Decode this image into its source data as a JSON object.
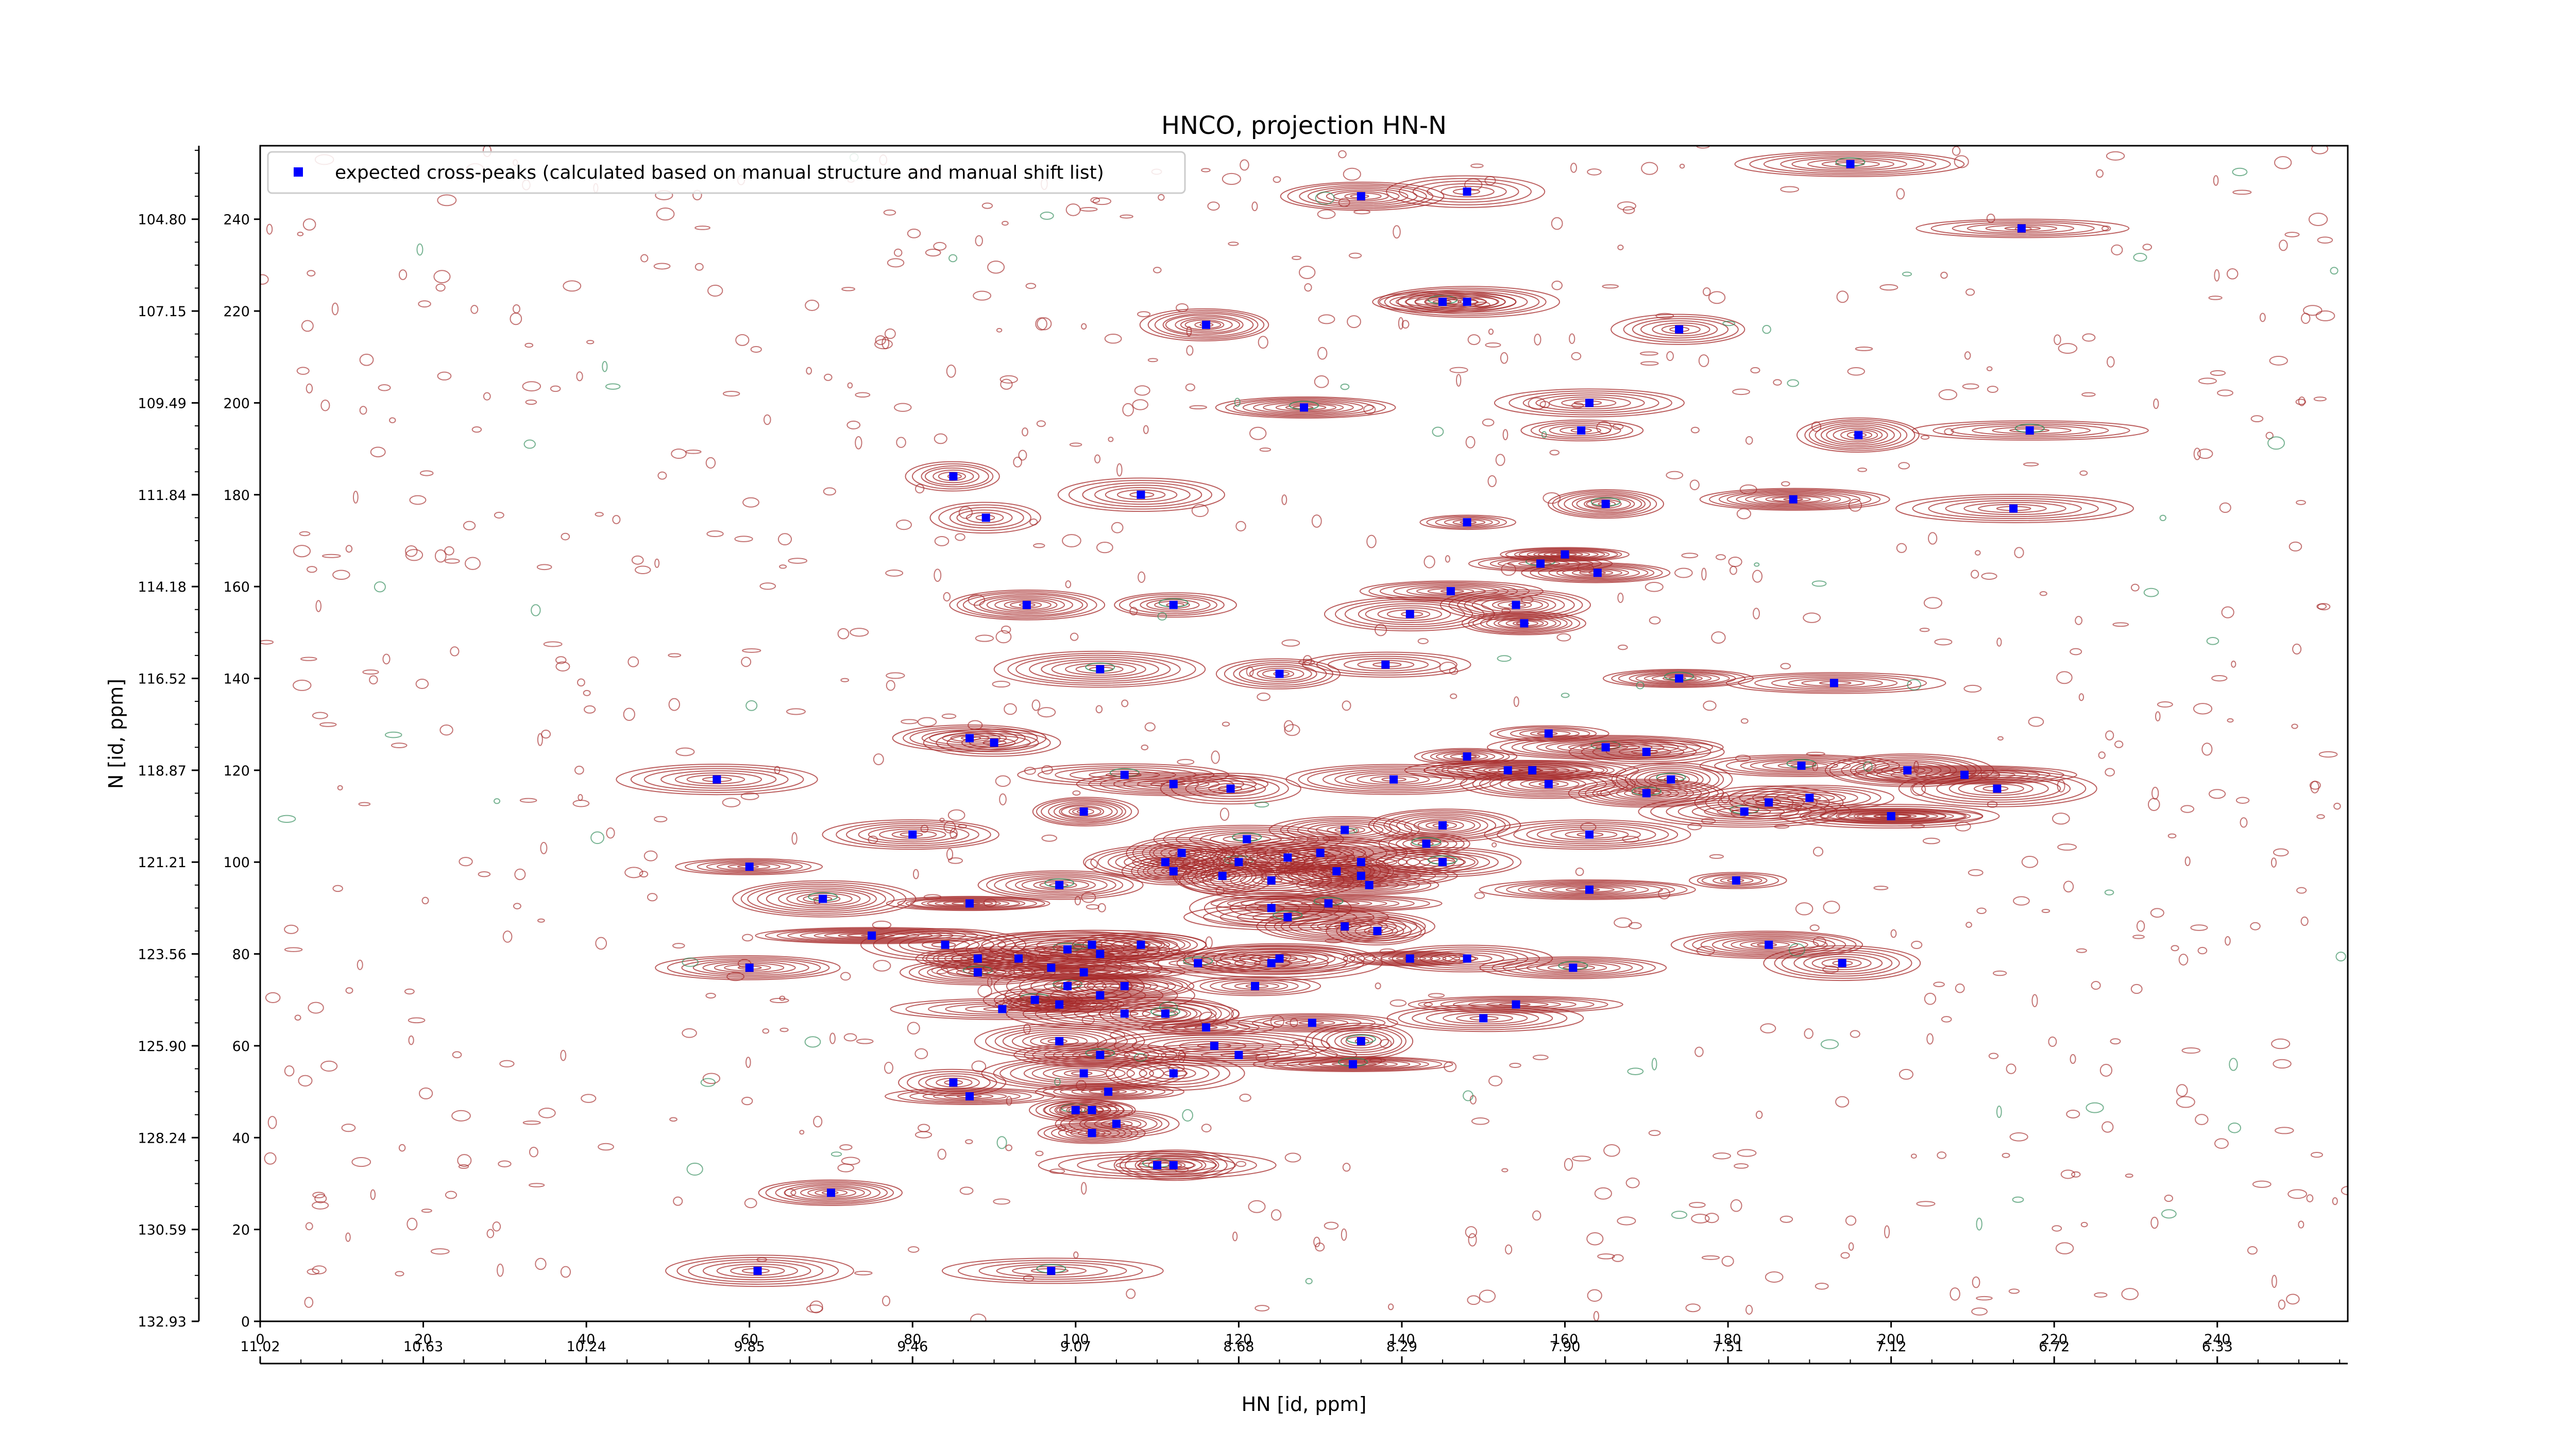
{
  "chart_data": {
    "type": "scatter",
    "title": "HNCO, projection HN-N",
    "xlabel": "HN [id, ppm]",
    "ylabel": "N [id, ppm]",
    "x_index_range": [
      0,
      256
    ],
    "y_index_range": [
      0,
      256
    ],
    "x_index_ticks": [
      "0",
      "20",
      "40",
      "60",
      "80",
      "100",
      "120",
      "140",
      "160",
      "180",
      "200",
      "220",
      "240"
    ],
    "x_ppm_ticks": [
      "11.02",
      "10.63",
      "10.24",
      "9.85",
      "9.46",
      "9.07",
      "8.68",
      "8.29",
      "7.90",
      "7.51",
      "7.12",
      "6.72",
      "6.33"
    ],
    "y_index_ticks": [
      "0",
      "20",
      "40",
      "60",
      "80",
      "100",
      "120",
      "140",
      "160",
      "180",
      "200",
      "220",
      "240"
    ],
    "y_ppm_ticks": [
      "132.93",
      "130.59",
      "128.24",
      "125.90",
      "123.56",
      "121.21",
      "118.87",
      "116.52",
      "114.18",
      "111.84",
      "109.49",
      "107.15",
      "104.80"
    ],
    "legend": {
      "placement": "top-left",
      "entries": [
        "expected cross-peaks (calculated based on manual structure and manual shift list)"
      ]
    },
    "colors": {
      "positive_contours": "#a52a2a",
      "negative_contours": "#2e8b57",
      "markers": "#0000ff"
    },
    "series": [
      {
        "name": "expected cross-peaks (calculated based on manual structure and manual shift list)",
        "points": [
          [
            195,
            252
          ],
          [
            148,
            246
          ],
          [
            135,
            245
          ],
          [
            216,
            238
          ],
          [
            145,
            222
          ],
          [
            148,
            222
          ],
          [
            116,
            217
          ],
          [
            174,
            216
          ],
          [
            128,
            199
          ],
          [
            163,
            200
          ],
          [
            162,
            194
          ],
          [
            196,
            193
          ],
          [
            217,
            194
          ],
          [
            85,
            184
          ],
          [
            108,
            180
          ],
          [
            188,
            179
          ],
          [
            165,
            178
          ],
          [
            215,
            177
          ],
          [
            89,
            175
          ],
          [
            148,
            174
          ],
          [
            157,
            165
          ],
          [
            164,
            163
          ],
          [
            146,
            159
          ],
          [
            94,
            156
          ],
          [
            112,
            156
          ],
          [
            154,
            156
          ],
          [
            141,
            154
          ],
          [
            155,
            152
          ],
          [
            103,
            142
          ],
          [
            125,
            141
          ],
          [
            138,
            143
          ],
          [
            193,
            139
          ],
          [
            174,
            140
          ],
          [
            87,
            127
          ],
          [
            90,
            126
          ],
          [
            158,
            128
          ],
          [
            165,
            125
          ],
          [
            170,
            124
          ],
          [
            148,
            123
          ],
          [
            56,
            118
          ],
          [
            106,
            119
          ],
          [
            139,
            118
          ],
          [
            153,
            120
          ],
          [
            156,
            120
          ],
          [
            189,
            121
          ],
          [
            202,
            120
          ],
          [
            209,
            119
          ],
          [
            158,
            117
          ],
          [
            173,
            118
          ],
          [
            119,
            116
          ],
          [
            112,
            117
          ],
          [
            101,
            111
          ],
          [
            182,
            111
          ],
          [
            185,
            113
          ],
          [
            200,
            110
          ],
          [
            190,
            114
          ],
          [
            170,
            115
          ],
          [
            213,
            116
          ],
          [
            80,
            106
          ],
          [
            163,
            106
          ],
          [
            121,
            105
          ],
          [
            133,
            107
          ],
          [
            145,
            108
          ],
          [
            113,
            102
          ],
          [
            120,
            100
          ],
          [
            126,
            101
          ],
          [
            130,
            102
          ],
          [
            135,
            100
          ],
          [
            143,
            104
          ],
          [
            111,
            100
          ],
          [
            132,
            98
          ],
          [
            60,
            99
          ],
          [
            98,
            95
          ],
          [
            118,
            97
          ],
          [
            124,
            96
          ],
          [
            136,
            95
          ],
          [
            145,
            100
          ],
          [
            163,
            94
          ],
          [
            135,
            97
          ],
          [
            181,
            96
          ],
          [
            69,
            92
          ],
          [
            87,
            91
          ],
          [
            112,
            98
          ],
          [
            124,
            90
          ],
          [
            131,
            91
          ],
          [
            75,
            84
          ],
          [
            133,
            86
          ],
          [
            137,
            85
          ],
          [
            126,
            88
          ],
          [
            84,
            82
          ],
          [
            88,
            79
          ],
          [
            93,
            79
          ],
          [
            99,
            81
          ],
          [
            102,
            82
          ],
          [
            103,
            80
          ],
          [
            108,
            82
          ],
          [
            115,
            78
          ],
          [
            124,
            78
          ],
          [
            141,
            79
          ],
          [
            60,
            77
          ],
          [
            88,
            76
          ],
          [
            97,
            77
          ],
          [
            101,
            76
          ],
          [
            106,
            73
          ],
          [
            99,
            73
          ],
          [
            122,
            73
          ],
          [
            125,
            79
          ],
          [
            148,
            79
          ],
          [
            161,
            77
          ],
          [
            185,
            82
          ],
          [
            194,
            78
          ],
          [
            91,
            68
          ],
          [
            95,
            70
          ],
          [
            98,
            69
          ],
          [
            103,
            71
          ],
          [
            106,
            67
          ],
          [
            111,
            67
          ],
          [
            116,
            64
          ],
          [
            117,
            60
          ],
          [
            129,
            65
          ],
          [
            135,
            61
          ],
          [
            150,
            66
          ],
          [
            154,
            69
          ],
          [
            98,
            61
          ],
          [
            103,
            58
          ],
          [
            120,
            58
          ],
          [
            101,
            54
          ],
          [
            112,
            54
          ],
          [
            134,
            56
          ],
          [
            85,
            52
          ],
          [
            87,
            49
          ],
          [
            104,
            50
          ],
          [
            100,
            46
          ],
          [
            102,
            46
          ],
          [
            105,
            43
          ],
          [
            102,
            41
          ],
          [
            110,
            34
          ],
          [
            112,
            34
          ],
          [
            70,
            28
          ],
          [
            61,
            11
          ],
          [
            97,
            11
          ],
          [
            200,
            110
          ],
          [
            160,
            167
          ]
        ]
      }
    ]
  }
}
